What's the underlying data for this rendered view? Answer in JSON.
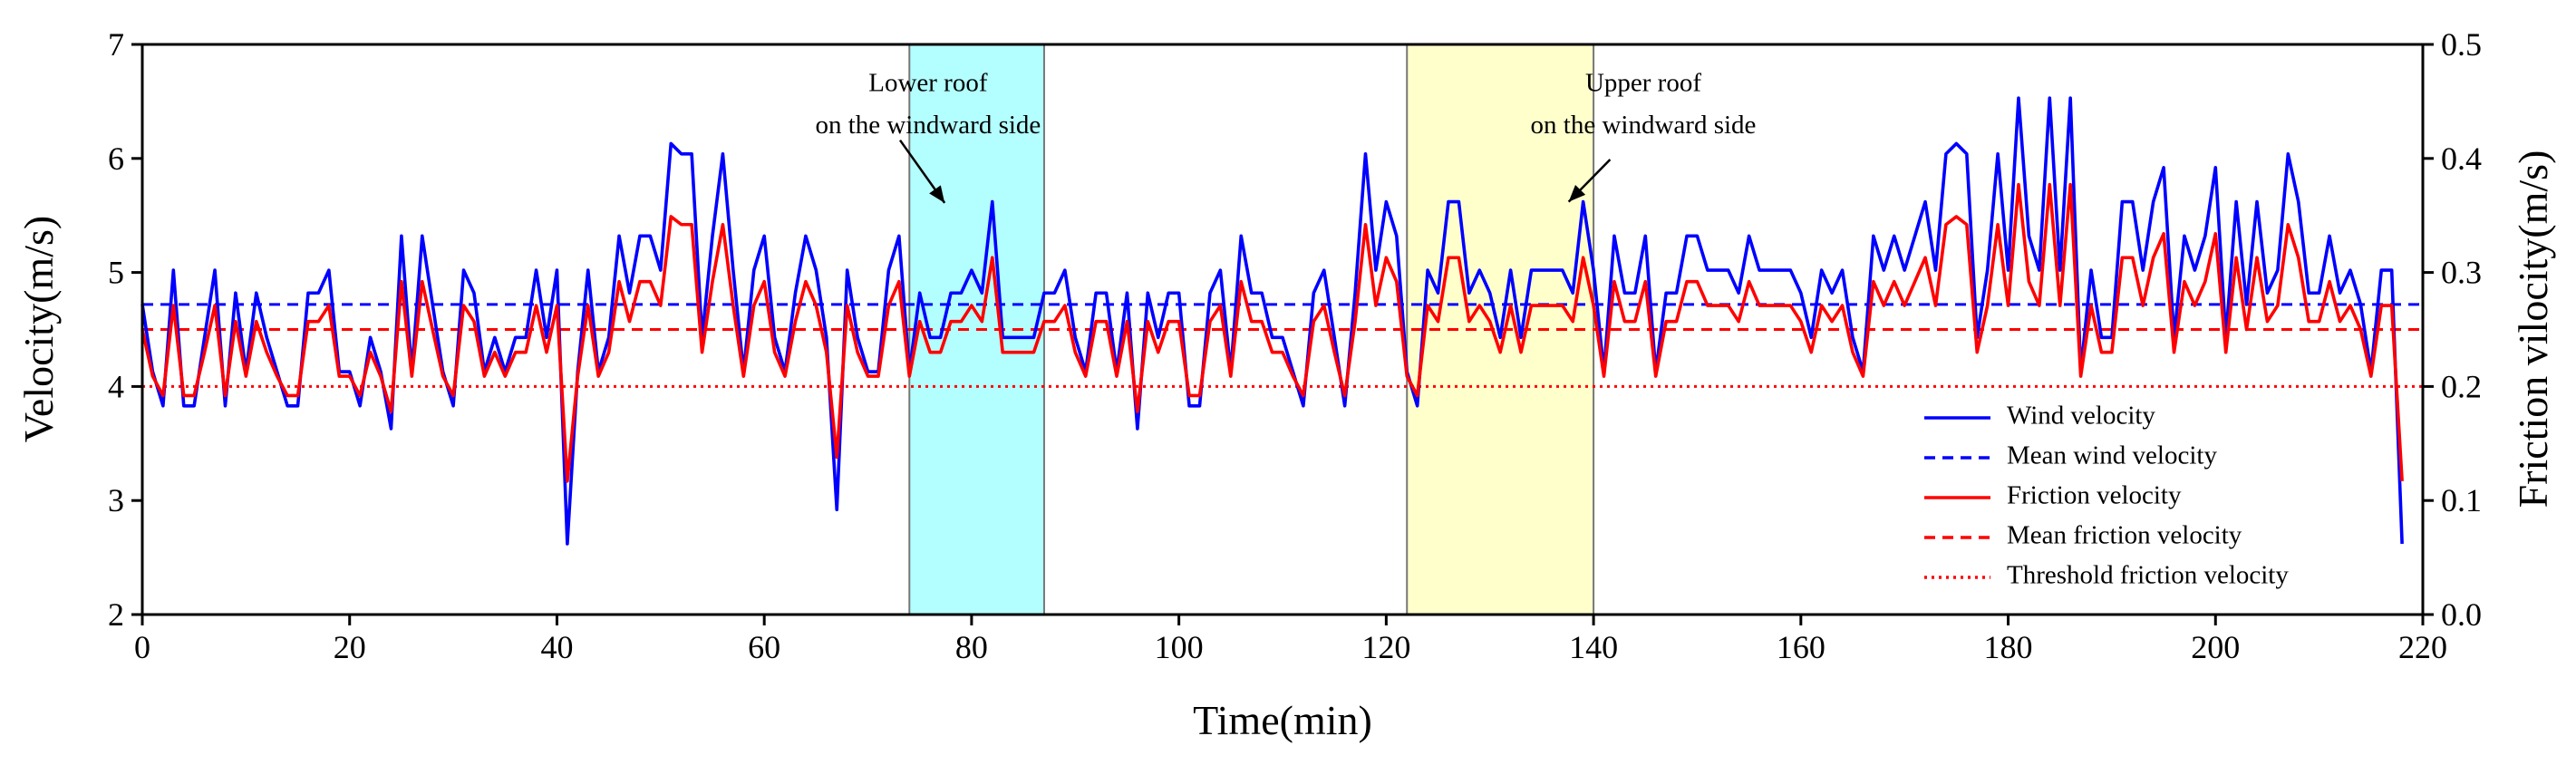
{
  "chart_data": {
    "type": "line",
    "xlabel": "Time(min)",
    "ylabel": "Velocity(m/s)",
    "y2label": "Friction vilocity(m/s)",
    "x": [
      0,
      1,
      2,
      3,
      4,
      5,
      6,
      7,
      8,
      9,
      10,
      11,
      12,
      13,
      14,
      15,
      16,
      17,
      18,
      19,
      20,
      21,
      22,
      23,
      24,
      25,
      26,
      27,
      28,
      29,
      30,
      31,
      32,
      33,
      34,
      35,
      36,
      37,
      38,
      39,
      40,
      41,
      42,
      43,
      44,
      45,
      46,
      47,
      48,
      49,
      50,
      51,
      52,
      53,
      54,
      55,
      56,
      57,
      58,
      59,
      60,
      61,
      62,
      63,
      64,
      65,
      66,
      67,
      68,
      69,
      70,
      71,
      72,
      73,
      74,
      75,
      76,
      77,
      78,
      79,
      80,
      81,
      82,
      83,
      84,
      85,
      86,
      87,
      88,
      89,
      90,
      91,
      92,
      93,
      94,
      95,
      96,
      97,
      98,
      99,
      100,
      101,
      102,
      103,
      104,
      105,
      106,
      107,
      108,
      109,
      110,
      111,
      112,
      113,
      114,
      115,
      116,
      117,
      118,
      119,
      120,
      121,
      122,
      123,
      124,
      125,
      126,
      127,
      128,
      129,
      130,
      131,
      132,
      133,
      134,
      135,
      136,
      137,
      138,
      139,
      140,
      141,
      142,
      143,
      144,
      145,
      146,
      147,
      148,
      149,
      150,
      151,
      152,
      153,
      154,
      155,
      156,
      157,
      158,
      159,
      160,
      161,
      162,
      163,
      164,
      165,
      166,
      167,
      168,
      169,
      170,
      171,
      172,
      173,
      174,
      175,
      176,
      177,
      178,
      179,
      180,
      181,
      182,
      183,
      184,
      185,
      186,
      187,
      188,
      189,
      190,
      191,
      192,
      193,
      194,
      195,
      196,
      197,
      198,
      199,
      200,
      201,
      202,
      203,
      204,
      205,
      206,
      207,
      208,
      209,
      210,
      211,
      212,
      213,
      214,
      215,
      216,
      217,
      218
    ],
    "series": [
      {
        "name": "Wind velocity",
        "color": "#0000ff",
        "axis": "y",
        "values": [
          4.72,
          4.13,
          3.83,
          5.02,
          3.83,
          3.83,
          4.43,
          5.02,
          3.83,
          4.82,
          4.13,
          4.82,
          4.43,
          4.13,
          3.83,
          3.83,
          4.82,
          4.82,
          5.02,
          4.13,
          4.13,
          3.83,
          4.43,
          4.13,
          3.63,
          5.32,
          4.13,
          5.32,
          4.72,
          4.13,
          3.83,
          5.02,
          4.82,
          4.13,
          4.43,
          4.13,
          4.43,
          4.43,
          5.02,
          4.43,
          5.02,
          2.62,
          4.13,
          5.02,
          4.13,
          4.43,
          5.32,
          4.82,
          5.32,
          5.32,
          5.02,
          6.13,
          6.04,
          6.04,
          4.43,
          5.32,
          6.04,
          5.02,
          4.13,
          5.02,
          5.32,
          4.43,
          4.13,
          4.82,
          5.32,
          5.02,
          4.43,
          2.92,
          5.02,
          4.43,
          4.13,
          4.13,
          5.02,
          5.32,
          4.13,
          4.82,
          4.43,
          4.43,
          4.82,
          4.82,
          5.02,
          4.82,
          5.62,
          4.43,
          4.43,
          4.43,
          4.43,
          4.82,
          4.82,
          5.02,
          4.43,
          4.13,
          4.82,
          4.82,
          4.13,
          4.82,
          3.63,
          4.82,
          4.43,
          4.82,
          4.82,
          3.83,
          3.83,
          4.82,
          5.02,
          4.13,
          5.32,
          4.82,
          4.82,
          4.43,
          4.43,
          4.13,
          3.83,
          4.82,
          5.02,
          4.43,
          3.83,
          4.82,
          6.04,
          5.02,
          5.62,
          5.32,
          4.13,
          3.83,
          5.02,
          4.82,
          5.62,
          5.62,
          4.82,
          5.02,
          4.82,
          4.43,
          5.02,
          4.43,
          5.02,
          5.02,
          5.02,
          5.02,
          4.82,
          5.62,
          5.02,
          4.13,
          5.32,
          4.82,
          4.82,
          5.32,
          4.13,
          4.82,
          4.82,
          5.32,
          5.32,
          5.02,
          5.02,
          5.02,
          4.82,
          5.32,
          5.02,
          5.02,
          5.02,
          5.02,
          4.82,
          4.43,
          5.02,
          4.82,
          5.02,
          4.43,
          4.13,
          5.32,
          5.02,
          5.32,
          5.02,
          5.32,
          5.62,
          5.02,
          6.04,
          6.13,
          6.04,
          4.43,
          5.02,
          6.04,
          5.02,
          6.53,
          5.32,
          5.02,
          6.53,
          5.02,
          6.53,
          4.13,
          5.02,
          4.43,
          4.43,
          5.62,
          5.62,
          5.02,
          5.62,
          5.92,
          4.43,
          5.32,
          5.02,
          5.32,
          5.92,
          4.43,
          5.62,
          4.72,
          5.62,
          4.82,
          5.02,
          6.04,
          5.62,
          4.82,
          4.82,
          5.32,
          4.82,
          5.02,
          4.72,
          4.13,
          5.02,
          5.02,
          2.62
        ]
      },
      {
        "name": "Friction velocity",
        "color": "#ff0000",
        "axis": "y2",
        "values": [
          0.25,
          0.209,
          0.192,
          0.271,
          0.192,
          0.192,
          0.23,
          0.271,
          0.192,
          0.257,
          0.209,
          0.257,
          0.23,
          0.209,
          0.192,
          0.192,
          0.257,
          0.257,
          0.271,
          0.209,
          0.209,
          0.192,
          0.23,
          0.209,
          0.178,
          0.292,
          0.209,
          0.292,
          0.25,
          0.209,
          0.192,
          0.271,
          0.257,
          0.209,
          0.23,
          0.209,
          0.23,
          0.23,
          0.271,
          0.23,
          0.271,
          0.117,
          0.209,
          0.271,
          0.209,
          0.23,
          0.292,
          0.257,
          0.292,
          0.292,
          0.271,
          0.349,
          0.342,
          0.342,
          0.23,
          0.292,
          0.342,
          0.271,
          0.209,
          0.271,
          0.292,
          0.23,
          0.209,
          0.257,
          0.292,
          0.271,
          0.23,
          0.138,
          0.271,
          0.23,
          0.209,
          0.209,
          0.271,
          0.292,
          0.209,
          0.257,
          0.23,
          0.23,
          0.257,
          0.257,
          0.271,
          0.257,
          0.313,
          0.23,
          0.23,
          0.23,
          0.23,
          0.257,
          0.257,
          0.271,
          0.23,
          0.209,
          0.257,
          0.257,
          0.209,
          0.257,
          0.178,
          0.257,
          0.23,
          0.257,
          0.257,
          0.192,
          0.192,
          0.257,
          0.271,
          0.209,
          0.292,
          0.257,
          0.257,
          0.23,
          0.23,
          0.209,
          0.192,
          0.257,
          0.271,
          0.23,
          0.192,
          0.257,
          0.342,
          0.271,
          0.313,
          0.292,
          0.209,
          0.192,
          0.271,
          0.257,
          0.313,
          0.313,
          0.257,
          0.271,
          0.257,
          0.23,
          0.271,
          0.23,
          0.271,
          0.271,
          0.271,
          0.271,
          0.257,
          0.313,
          0.271,
          0.209,
          0.292,
          0.257,
          0.257,
          0.292,
          0.209,
          0.257,
          0.257,
          0.292,
          0.292,
          0.271,
          0.271,
          0.271,
          0.257,
          0.292,
          0.271,
          0.271,
          0.271,
          0.271,
          0.257,
          0.23,
          0.271,
          0.257,
          0.271,
          0.23,
          0.209,
          0.292,
          0.271,
          0.292,
          0.271,
          0.292,
          0.313,
          0.271,
          0.342,
          0.349,
          0.342,
          0.23,
          0.271,
          0.342,
          0.271,
          0.377,
          0.292,
          0.271,
          0.377,
          0.271,
          0.377,
          0.209,
          0.271,
          0.23,
          0.23,
          0.313,
          0.313,
          0.271,
          0.313,
          0.334,
          0.23,
          0.292,
          0.271,
          0.292,
          0.334,
          0.23,
          0.313,
          0.25,
          0.313,
          0.257,
          0.271,
          0.342,
          0.313,
          0.257,
          0.257,
          0.292,
          0.257,
          0.271,
          0.25,
          0.209,
          0.271,
          0.271,
          0.117
        ]
      }
    ],
    "reference_lines": [
      {
        "name": "Mean wind velocity",
        "value": 4.72,
        "axis": "y",
        "color": "#0000ff",
        "style": "dashed"
      },
      {
        "name": "Mean friction velocity",
        "value": 0.25,
        "axis": "y2",
        "color": "#ff0000",
        "style": "dashed"
      },
      {
        "name": "Threshold friction velocity",
        "value": 0.2,
        "axis": "y2",
        "color": "#ff0000",
        "style": "dotted"
      }
    ],
    "highlights": [
      {
        "x": [
          74,
          87
        ],
        "color": "#b3ffff",
        "text": [
          "Lower roof",
          "on the windward side"
        ]
      },
      {
        "x": [
          122,
          140
        ],
        "color": "#ffffcc",
        "text": [
          "Upper roof",
          "on the windward side"
        ]
      }
    ],
    "xlim": [
      0,
      220
    ],
    "xticks": [
      0,
      20,
      40,
      60,
      80,
      100,
      120,
      140,
      160,
      180,
      200,
      220
    ],
    "ylim": [
      2,
      7
    ],
    "yticks": [
      2,
      3,
      4,
      5,
      6,
      7
    ],
    "y2lim": [
      0,
      0.5
    ],
    "y2ticks": [
      {
        "value": 0,
        "label": "0.0"
      },
      0.1,
      0.2,
      0.3,
      0.4,
      0.5
    ],
    "legend": "lower-right"
  }
}
